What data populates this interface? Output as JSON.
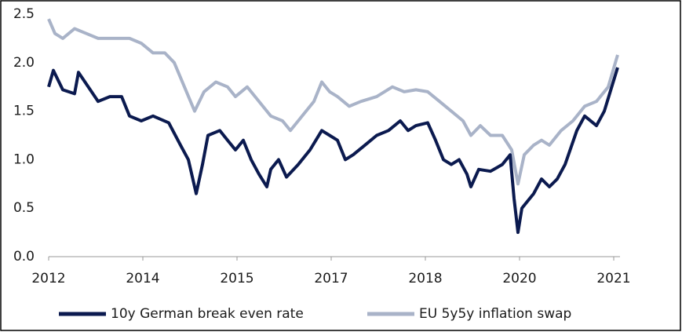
{
  "chart_data": {
    "type": "line",
    "xlim": [
      2012,
      2021.1
    ],
    "xticks": [
      {
        "value": 2012,
        "label": "2012"
      },
      {
        "value": 2013.5,
        "label": "2014"
      },
      {
        "value": 2015,
        "label": "2015"
      },
      {
        "value": 2016.5,
        "label": "2017"
      },
      {
        "value": 2018,
        "label": "2018"
      },
      {
        "value": 2019.5,
        "label": "2020"
      },
      {
        "value": 2021,
        "label": "2021"
      }
    ],
    "ylim": [
      0,
      2.5
    ],
    "yticks": [
      {
        "value": 0,
        "label": "0.0"
      },
      {
        "value": 0.5,
        "label": "0.5"
      },
      {
        "value": 1,
        "label": "1.0"
      },
      {
        "value": 1.5,
        "label": "1.5"
      },
      {
        "value": 2,
        "label": "2.0"
      },
      {
        "value": 2.5,
        "label": "2.5"
      }
    ],
    "grid": false,
    "legend": "bottom",
    "series": [
      {
        "name": "10y German break even rate",
        "color": "#0b1a4f",
        "x": [
          2012,
          2012.075,
          2012.225,
          2012.413,
          2012.475,
          2012.663,
          2012.788,
          2012.975,
          2013.163,
          2013.288,
          2013.475,
          2013.663,
          2013.913,
          2014.1,
          2014.225,
          2014.35,
          2014.45,
          2014.538,
          2014.725,
          2014.85,
          2014.975,
          2015.1,
          2015.225,
          2015.35,
          2015.475,
          2015.538,
          2015.663,
          2015.788,
          2015.975,
          2016.163,
          2016.35,
          2016.475,
          2016.6,
          2016.725,
          2016.85,
          2017.038,
          2017.225,
          2017.413,
          2017.6,
          2017.725,
          2017.85,
          2018.038,
          2018.163,
          2018.288,
          2018.413,
          2018.538,
          2018.663,
          2018.725,
          2018.85,
          2019.038,
          2019.225,
          2019.35,
          2019.413,
          2019.475,
          2019.538,
          2019.725,
          2019.85,
          2019.975,
          2020.1,
          2020.225,
          2020.413,
          2020.538,
          2020.725,
          2020.85,
          2021.063
        ],
        "values": [
          1.75,
          1.92,
          1.72,
          1.68,
          1.9,
          1.72,
          1.6,
          1.65,
          1.65,
          1.45,
          1.4,
          1.45,
          1.38,
          1.15,
          1.0,
          0.65,
          0.95,
          1.25,
          1.3,
          1.2,
          1.1,
          1.2,
          1.0,
          0.85,
          0.72,
          0.9,
          1.0,
          0.82,
          0.95,
          1.1,
          1.3,
          1.25,
          1.2,
          1.0,
          1.05,
          1.15,
          1.25,
          1.3,
          1.4,
          1.3,
          1.35,
          1.38,
          1.2,
          1.0,
          0.95,
          1.0,
          0.85,
          0.72,
          0.9,
          0.88,
          0.95,
          1.05,
          0.6,
          0.25,
          0.5,
          0.65,
          0.8,
          0.72,
          0.8,
          0.95,
          1.3,
          1.45,
          1.35,
          1.5,
          1.95
        ]
      },
      {
        "name": "EU 5y5y inflation swap",
        "color": "#a9b3c8",
        "x": [
          2012,
          2012.1,
          2012.225,
          2012.413,
          2012.6,
          2012.788,
          2013.038,
          2013.288,
          2013.475,
          2013.663,
          2013.85,
          2014.0,
          2014.163,
          2014.325,
          2014.475,
          2014.663,
          2014.85,
          2014.975,
          2015.163,
          2015.35,
          2015.538,
          2015.725,
          2015.85,
          2016.038,
          2016.225,
          2016.35,
          2016.475,
          2016.6,
          2016.788,
          2016.975,
          2017.225,
          2017.475,
          2017.663,
          2017.85,
          2018.038,
          2018.225,
          2018.413,
          2018.6,
          2018.725,
          2018.875,
          2019.038,
          2019.225,
          2019.375,
          2019.475,
          2019.575,
          2019.725,
          2019.85,
          2019.975,
          2020.163,
          2020.35,
          2020.538,
          2020.725,
          2020.913,
          2021.063
        ],
        "values": [
          2.45,
          2.3,
          2.25,
          2.35,
          2.3,
          2.25,
          2.25,
          2.25,
          2.2,
          2.1,
          2.1,
          2.0,
          1.75,
          1.5,
          1.7,
          1.8,
          1.75,
          1.65,
          1.75,
          1.6,
          1.45,
          1.4,
          1.3,
          1.45,
          1.6,
          1.8,
          1.7,
          1.65,
          1.55,
          1.6,
          1.65,
          1.75,
          1.7,
          1.72,
          1.7,
          1.6,
          1.5,
          1.4,
          1.25,
          1.35,
          1.25,
          1.25,
          1.1,
          0.75,
          1.05,
          1.15,
          1.2,
          1.15,
          1.3,
          1.4,
          1.55,
          1.6,
          1.75,
          2.08
        ]
      }
    ]
  }
}
